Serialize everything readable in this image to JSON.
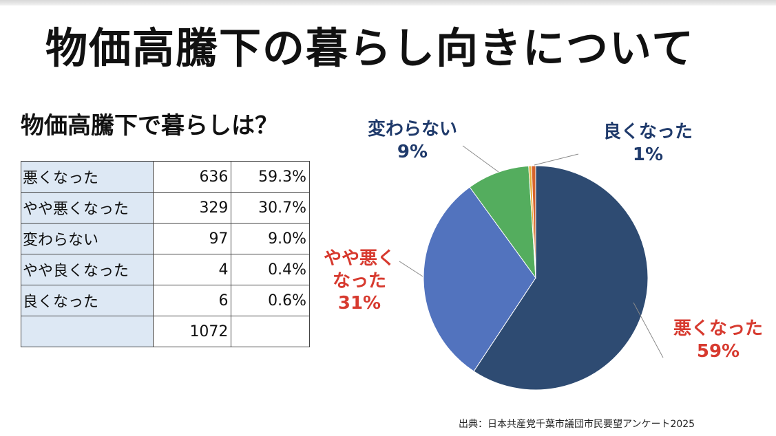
{
  "title": "物価高騰下の暮らし向きについて",
  "table": {
    "heading": "物価高騰下で暮らしは？",
    "rows": [
      {
        "label": "悪くなった",
        "count": "636",
        "percent": "59.3%"
      },
      {
        "label": "やや悪くなった",
        "count": "329",
        "percent": "30.7%"
      },
      {
        "label": "変わらない",
        "count": "97",
        "percent": "9.0%"
      },
      {
        "label": "やや良くなった",
        "count": "4",
        "percent": "0.4%"
      },
      {
        "label": "良くなった",
        "count": "6",
        "percent": "0.6%"
      }
    ],
    "total": "1072"
  },
  "chart_data": {
    "type": "pie",
    "slices": [
      {
        "label": "悪くなった",
        "value": 59.3,
        "display": "59%",
        "color": "#2e4b72",
        "label_color": "#d73a2f"
      },
      {
        "label": "やや悪くなった",
        "value": 30.7,
        "display": "31%",
        "color": "#5273be",
        "label_color": "#d73a2f"
      },
      {
        "label": "変わらない",
        "value": 9.0,
        "display": "9%",
        "color": "#54ad5e",
        "label_color": "#1f3a6b"
      },
      {
        "label": "やや良くなった",
        "value": 0.4,
        "display": "",
        "color": "#e7b13b",
        "label_color": ""
      },
      {
        "label": "良くなった",
        "value": 0.6,
        "display": "1%",
        "color": "#d7642c",
        "label_color": "#1f3a6b"
      }
    ],
    "start_angle": "12 o'clock",
    "direction": "clockwise"
  },
  "chart_labels": {
    "worse_line1": "悪くなった",
    "worse_pct": "59%",
    "slightly_worse_line1": "やや悪く",
    "slightly_worse_line2": "なった",
    "slightly_worse_pct": "31%",
    "unchanged_line1": "変わらない",
    "unchanged_pct": "9%",
    "better_line1": "良くなった",
    "better_pct": "1%"
  },
  "source": "出典：日本共産党千葉市議団市民要望アンケート2025"
}
